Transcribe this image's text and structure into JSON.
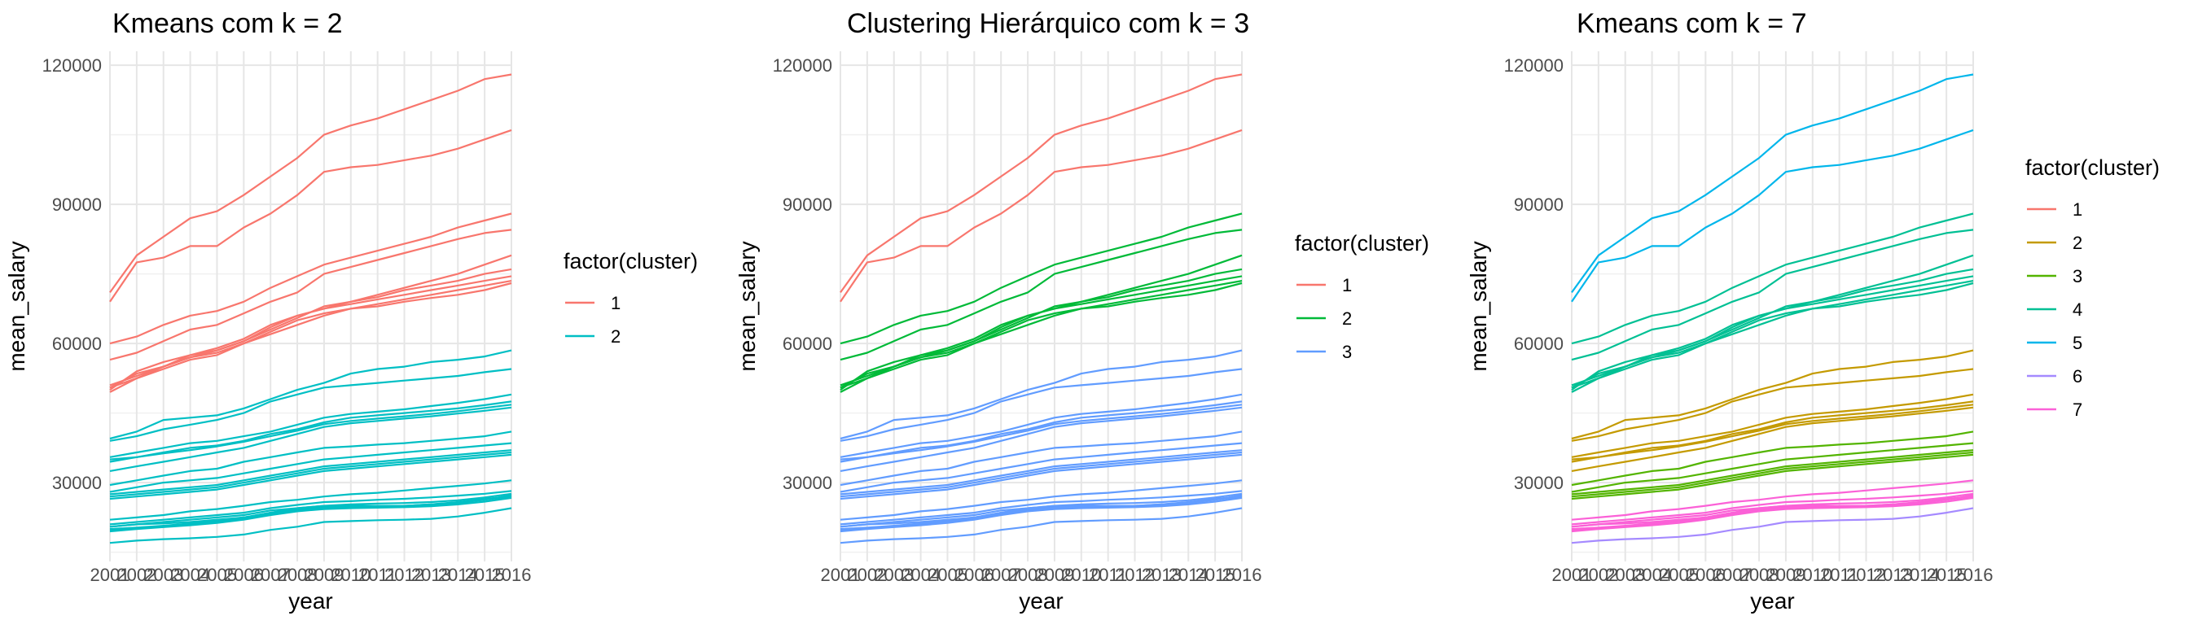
{
  "chart_data": [
    {
      "type": "line",
      "title": "Kmeans com k = 2",
      "xlabel": "year",
      "ylabel": "mean_salary",
      "xlim": [
        2001,
        2016
      ],
      "ylim": [
        13000,
        123000
      ],
      "x_ticks": [
        "2001",
        "2002",
        "2003",
        "2004",
        "2005",
        "2006",
        "2007",
        "2008",
        "2009",
        "2010",
        "2011",
        "2012",
        "2013",
        "2014",
        "2015",
        "2016"
      ],
      "y_ticks": [
        30000,
        60000,
        90000,
        120000
      ],
      "y_tick_labels": [
        "30000",
        "60000",
        "90000",
        "120000"
      ],
      "grid": true,
      "legend": {
        "title": "factor(cluster)",
        "position": "right",
        "labels": [
          "1",
          "2"
        ]
      },
      "series_cluster": [
        1,
        1,
        1,
        1,
        1,
        1,
        1,
        1,
        1,
        2,
        2,
        2,
        2,
        2,
        2,
        2,
        2,
        2,
        2,
        2,
        2,
        2,
        2,
        2,
        2,
        2,
        2,
        2
      ]
    },
    {
      "type": "line",
      "title": "Clustering Hierárquico com k = 3",
      "xlabel": "year",
      "ylabel": "mean_salary",
      "xlim": [
        2001,
        2016
      ],
      "ylim": [
        13000,
        123000
      ],
      "x_ticks": [
        "2001",
        "2002",
        "2003",
        "2004",
        "2005",
        "2006",
        "2007",
        "2008",
        "2009",
        "2010",
        "2011",
        "2012",
        "2013",
        "2014",
        "2015",
        "2016"
      ],
      "y_ticks": [
        30000,
        60000,
        90000,
        120000
      ],
      "y_tick_labels": [
        "30000",
        "60000",
        "90000",
        "120000"
      ],
      "grid": true,
      "legend": {
        "title": "factor(cluster)",
        "position": "right",
        "labels": [
          "1",
          "2",
          "3"
        ]
      },
      "series_cluster": [
        1,
        1,
        2,
        2,
        2,
        2,
        2,
        2,
        2,
        3,
        3,
        3,
        3,
        3,
        3,
        3,
        3,
        3,
        3,
        3,
        3,
        3,
        3,
        3,
        3,
        3,
        3,
        3
      ]
    },
    {
      "type": "line",
      "title": "Kmeans com k = 7",
      "xlabel": "year",
      "ylabel": "mean_salary",
      "xlim": [
        2001,
        2016
      ],
      "ylim": [
        13000,
        123000
      ],
      "x_ticks": [
        "2001",
        "2002",
        "2003",
        "2004",
        "2005",
        "2006",
        "2007",
        "2008",
        "2009",
        "2010",
        "2011",
        "2012",
        "2013",
        "2014",
        "2015",
        "2016"
      ],
      "y_ticks": [
        30000,
        60000,
        90000,
        120000
      ],
      "y_tick_labels": [
        "30000",
        "60000",
        "90000",
        "120000"
      ],
      "grid": true,
      "legend": {
        "title": "factor(cluster)",
        "position": "right",
        "labels": [
          "1",
          "2",
          "3",
          "4",
          "5",
          "6",
          "7"
        ]
      },
      "series_cluster": [
        5,
        5,
        4,
        4,
        4,
        4,
        4,
        4,
        4,
        2,
        2,
        2,
        2,
        2,
        2,
        3,
        3,
        3,
        3,
        3,
        7,
        7,
        7,
        7,
        7,
        7,
        6,
        7
      ]
    }
  ],
  "lines_x": [
    2001,
    2002,
    2003,
    2004,
    2005,
    2006,
    2007,
    2008,
    2009,
    2010,
    2011,
    2012,
    2013,
    2014,
    2015,
    2016
  ],
  "lines": [
    [
      71000,
      79000,
      83000,
      87000,
      88500,
      92000,
      96000,
      100000,
      105000,
      107000,
      108500,
      110500,
      112500,
      114500,
      117000,
      118000
    ],
    [
      69000,
      77500,
      78500,
      81000,
      81000,
      85000,
      88000,
      92000,
      97000,
      98000,
      98500,
      99500,
      100500,
      102000,
      104000,
      106000
    ],
    [
      60000,
      61500,
      64000,
      66000,
      67000,
      69000,
      72000,
      74500,
      77000,
      78500,
      80000,
      81500,
      83000,
      85000,
      86500,
      88000
    ],
    [
      56500,
      58000,
      60500,
      63000,
      64000,
      66500,
      69000,
      71000,
      75000,
      76500,
      78000,
      79500,
      81000,
      82500,
      83800,
      84500
    ],
    [
      50500,
      53500,
      55000,
      57500,
      58500,
      60500,
      63000,
      65500,
      68000,
      69000,
      70500,
      72000,
      73500,
      75000,
      77000,
      79000
    ],
    [
      50000,
      54000,
      56000,
      57500,
      59000,
      61000,
      64000,
      66000,
      67500,
      69000,
      70000,
      71500,
      72500,
      73500,
      75000,
      76000
    ],
    [
      51000,
      53000,
      55000,
      57000,
      58500,
      60500,
      63500,
      66000,
      67500,
      68500,
      69500,
      70500,
      71500,
      72500,
      73500,
      74500
    ],
    [
      49500,
      52500,
      54500,
      56500,
      57500,
      60000,
      62500,
      65000,
      66500,
      67500,
      68000,
      69000,
      69800,
      70500,
      71500,
      73000
    ],
    [
      50500,
      52500,
      55000,
      57000,
      58000,
      60000,
      62000,
      64000,
      66000,
      67500,
      68500,
      69500,
      70500,
      71500,
      72500,
      73500
    ],
    [
      39500,
      41000,
      43500,
      44000,
      44500,
      46000,
      48000,
      50000,
      51500,
      53500,
      54500,
      55000,
      56000,
      56500,
      57200,
      58500
    ],
    [
      39000,
      40000,
      41500,
      42500,
      43500,
      45000,
      47500,
      49000,
      50500,
      51000,
      51500,
      52000,
      52500,
      53000,
      53800,
      54500
    ],
    [
      35500,
      36500,
      37500,
      38500,
      39000,
      40000,
      41000,
      42500,
      44000,
      44800,
      45300,
      45800,
      46500,
      47200,
      48000,
      49000
    ],
    [
      35000,
      35500,
      36500,
      37500,
      38000,
      39000,
      40500,
      41500,
      43000,
      44000,
      44500,
      45000,
      45500,
      46000,
      46700,
      47500
    ],
    [
      34500,
      35500,
      36300,
      37000,
      37800,
      38800,
      40000,
      41200,
      42600,
      43300,
      43800,
      44300,
      44800,
      45400,
      46100,
      46800
    ],
    [
      32500,
      33500,
      34500,
      35500,
      36500,
      37500,
      39000,
      40500,
      42000,
      42800,
      43300,
      43800,
      44300,
      44900,
      45500,
      46200
    ],
    [
      29500,
      30500,
      31500,
      32500,
      33000,
      34500,
      35500,
      36500,
      37500,
      37800,
      38200,
      38500,
      39000,
      39500,
      40000,
      41000
    ],
    [
      28000,
      29000,
      30000,
      30500,
      31000,
      32000,
      33000,
      34000,
      35000,
      35500,
      36000,
      36500,
      37000,
      37500,
      38000,
      38500
    ],
    [
      27500,
      28000,
      28500,
      29000,
      29500,
      30500,
      31500,
      32500,
      33500,
      34000,
      34500,
      35000,
      35500,
      36000,
      36500,
      37000
    ],
    [
      27000,
      27500,
      28000,
      28500,
      29000,
      30000,
      31000,
      32000,
      33000,
      33500,
      34000,
      34500,
      35000,
      35500,
      36000,
      36500
    ],
    [
      26500,
      27000,
      27500,
      28000,
      28500,
      29500,
      30500,
      31500,
      32500,
      33000,
      33500,
      34000,
      34500,
      35000,
      35500,
      36000
    ],
    [
      22000,
      22500,
      23000,
      23800,
      24300,
      25000,
      25800,
      26300,
      27000,
      27500,
      27800,
      28300,
      28800,
      29300,
      29800,
      30500
    ],
    [
      21000,
      21500,
      22000,
      22500,
      23000,
      23500,
      24500,
      25200,
      25800,
      26000,
      26300,
      26500,
      26800,
      27200,
      27600,
      28200
    ],
    [
      20500,
      21000,
      21500,
      22000,
      22500,
      23000,
      24000,
      24500,
      25000,
      25300,
      25500,
      25600,
      25800,
      26200,
      26800,
      27600
    ],
    [
      20500,
      21000,
      21200,
      21500,
      22000,
      22500,
      23500,
      24500,
      25000,
      25000,
      25000,
      25000,
      25300,
      25800,
      26500,
      27000
    ],
    [
      20000,
      20300,
      20700,
      21200,
      21800,
      22500,
      23500,
      24300,
      24800,
      24900,
      24900,
      25000,
      25300,
      25700,
      26300,
      27300
    ],
    [
      19800,
      20200,
      20500,
      21000,
      21500,
      22200,
      23200,
      24000,
      24600,
      24700,
      24800,
      24900,
      25100,
      25600,
      26300,
      27000
    ],
    [
      17000,
      17500,
      17800,
      18000,
      18300,
      18800,
      19800,
      20500,
      21500,
      21700,
      21900,
      22000,
      22200,
      22700,
      23500,
      24500
    ],
    [
      19500,
      20000,
      20400,
      20800,
      21300,
      22000,
      23000,
      23800,
      24300,
      24500,
      24600,
      24700,
      24900,
      25300,
      25900,
      26700
    ]
  ],
  "palettes": [
    [
      "#F8766D",
      "#00BFC4"
    ],
    [
      "#F8766D",
      "#00BA38",
      "#619CFF"
    ],
    [
      "#F8766D",
      "#C49A00",
      "#53B400",
      "#00C094",
      "#00B6EB",
      "#A58AFF",
      "#FB61D7"
    ]
  ]
}
